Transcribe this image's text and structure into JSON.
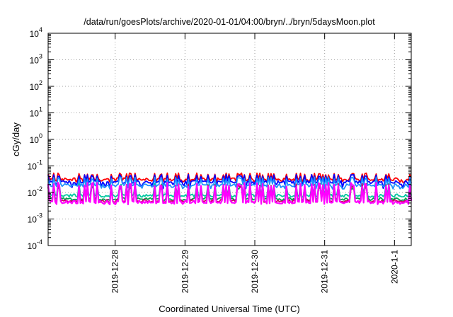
{
  "chart_data": {
    "type": "line",
    "title": "/data/run/goesPlots/archive/2020-01-01/04:00/bryn/../bryn/5daysMoon.plot",
    "xlabel": "Coordinated Universal Time (UTC)",
    "ylabel": "cGy/day",
    "y_scale": "log",
    "ylim_exponents": [
      -4,
      4
    ],
    "y_tick_base": "10",
    "y_ticks": [
      {
        "base": "10",
        "exp": "-4"
      },
      {
        "base": "10",
        "exp": "-3"
      },
      {
        "base": "10",
        "exp": "-2"
      },
      {
        "base": "10",
        "exp": "-1"
      },
      {
        "base": "10",
        "exp": "0"
      },
      {
        "base": "10",
        "exp": "1"
      },
      {
        "base": "10",
        "exp": "2"
      },
      {
        "base": "10",
        "exp": "3"
      },
      {
        "base": "10",
        "exp": "4"
      }
    ],
    "x_range_days": [
      0,
      5.2
    ],
    "x_ticks": [
      {
        "label": "2019-12-28",
        "day": 0.96
      },
      {
        "label": "2019-12-29",
        "day": 1.96
      },
      {
        "label": "2019-12-30",
        "day": 2.96
      },
      {
        "label": "2019-12-31",
        "day": 3.96
      },
      {
        "label": "2020-1-1",
        "day": 4.96
      }
    ],
    "grid": true,
    "grid_style": "dotted",
    "legend": "none",
    "series": [
      {
        "color": "#ff0000",
        "base": 0.032,
        "spike": 1.7,
        "dip": 0.75
      },
      {
        "color": "#0000ff",
        "base": 0.025,
        "spike": 1.9,
        "dip": 0.55
      },
      {
        "color": "#1e90ff",
        "base": 0.019,
        "spike": 2.0,
        "dip": 0.7
      },
      {
        "color": "#00c8a0",
        "base": 0.0078,
        "spike": 2.8,
        "dip": 0.85
      },
      {
        "color": "#00a050",
        "base": 0.0058,
        "spike": 3.0,
        "dip": 0.85
      },
      {
        "color": "#cc0066",
        "base": 0.0048,
        "spike": 4.5,
        "dip": 0.85
      },
      {
        "color": "#ff00ff",
        "base": 0.0044,
        "spike": 5.5,
        "dip": 0.8
      }
    ]
  }
}
